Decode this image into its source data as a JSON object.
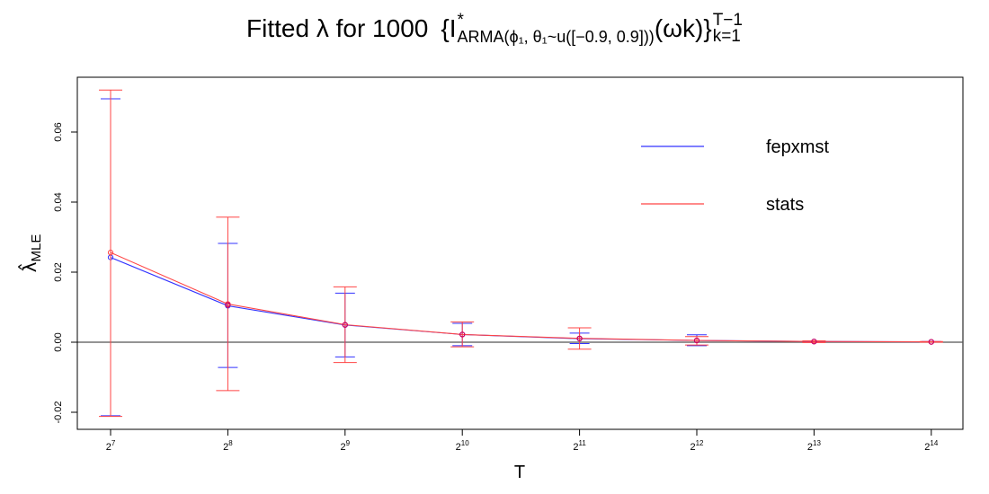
{
  "title": {
    "prefix": "Fitted λ for 1000",
    "math_I": "{I",
    "math_star": "*",
    "math_sub": "ARMA(ϕ₁, θ₁~u([−0.9, 0.9]))",
    "math_omega": "(ωk)}",
    "math_range_top": "T−1",
    "math_range_bottom": "k=1"
  },
  "chart_data": {
    "type": "line",
    "title": "Fitted λ for 1000 {I*ARMA(ϕ1, θ1~u([−0.9, 0.9]))(ωk)}T−1 k=1",
    "xlabel": "T",
    "ylabel": "λ̂MLE",
    "x_categories": [
      "2^7",
      "2^8",
      "2^9",
      "2^10",
      "2^11",
      "2^12",
      "2^13",
      "2^14"
    ],
    "x_tick_base": "2",
    "x_tick_exponents": [
      "7",
      "8",
      "9",
      "10",
      "11",
      "12",
      "13",
      "14"
    ],
    "ylim": [
      -0.025,
      0.075
    ],
    "y_ticks": [
      -0.02,
      0.0,
      0.02,
      0.04,
      0.06
    ],
    "y_tick_labels": [
      "-0.02",
      "0.00",
      "0.02",
      "0.04",
      "0.06"
    ],
    "reference_line": 0,
    "grid": false,
    "legend_position": "top-right",
    "series": [
      {
        "name": "fepxmst",
        "color": "#3333ff",
        "values": [
          0.0242,
          0.0104,
          0.0049,
          0.0022,
          0.001,
          0.0005,
          0.0002,
          0.0001
        ],
        "lower": [
          -0.021,
          -0.0072,
          -0.0042,
          -0.001,
          -0.0004,
          -0.001,
          0.0,
          0.0
        ],
        "upper": [
          0.0695,
          0.0282,
          0.014,
          0.0054,
          0.0026,
          0.0021,
          0.0004,
          0.0002
        ]
      },
      {
        "name": "stats",
        "color": "#ff4444",
        "values": [
          0.0256,
          0.0109,
          0.005,
          0.0022,
          0.0011,
          0.0005,
          0.0002,
          0.0001
        ],
        "lower": [
          -0.0212,
          -0.0138,
          -0.0058,
          -0.0013,
          -0.002,
          -0.0008,
          -0.0001,
          0.0
        ],
        "upper": [
          0.072,
          0.0357,
          0.0158,
          0.0058,
          0.0041,
          0.0016,
          0.0004,
          0.0002
        ]
      }
    ],
    "overlap_point_color": "#cc0066"
  }
}
